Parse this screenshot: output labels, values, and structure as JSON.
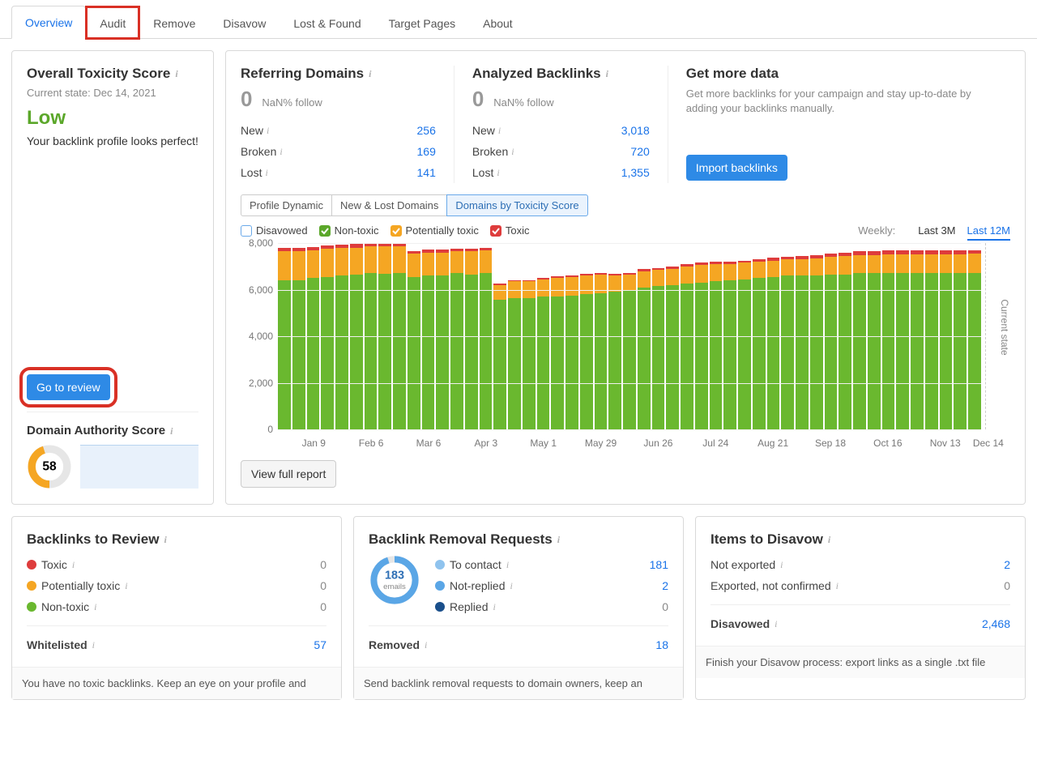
{
  "tabs": {
    "items": [
      "Overview",
      "Audit",
      "Remove",
      "Disavow",
      "Lost & Found",
      "Target Pages",
      "About"
    ],
    "active_index": 0,
    "highlight_index": 1
  },
  "toxicity": {
    "title": "Overall Toxicity Score",
    "current_state_label": "Current state: Dec 14, 2021",
    "value": "Low",
    "value_color": "#5ba72a",
    "description": "Your backlink profile looks perfect!",
    "review_button": "Go to review"
  },
  "referring": {
    "title": "Referring Domains",
    "count": "0",
    "follow": "NaN% follow",
    "rows": [
      {
        "label": "New",
        "val": "256"
      },
      {
        "label": "Broken",
        "val": "169"
      },
      {
        "label": "Lost",
        "val": "141"
      }
    ]
  },
  "analyzed": {
    "title": "Analyzed Backlinks",
    "count": "0",
    "follow": "NaN% follow",
    "rows": [
      {
        "label": "New",
        "val": "3,018"
      },
      {
        "label": "Broken",
        "val": "720"
      },
      {
        "label": "Lost",
        "val": "1,355"
      }
    ]
  },
  "getmore": {
    "title": "Get more data",
    "desc": "Get more backlinks for your campaign and stay up-to-date by adding your backlinks manually.",
    "button": "Import backlinks"
  },
  "subtabs": {
    "items": [
      "Profile Dynamic",
      "New & Lost Domains",
      "Domains by Toxicity Score"
    ],
    "active_index": 2
  },
  "legend": {
    "items": [
      {
        "label": "Disavowed",
        "checked": false,
        "bg": "#ffffff",
        "border": "#6aa9e9"
      },
      {
        "label": "Non-toxic",
        "checked": true,
        "bg": "#5ba72a",
        "border": "#5ba72a"
      },
      {
        "label": "Potentially toxic",
        "checked": true,
        "bg": "#f5a623",
        "border": "#f5a623"
      },
      {
        "label": "Toxic",
        "checked": true,
        "bg": "#de3c3c",
        "border": "#de3c3c"
      }
    ]
  },
  "period": {
    "label": "Weekly:",
    "options": [
      "Last 3M",
      "Last 12M"
    ],
    "active": "Last 12M"
  },
  "chart": {
    "ymax": 8000,
    "yticks": [
      0,
      2000,
      4000,
      6000,
      8000
    ],
    "ytick_labels": [
      "0",
      "2,000",
      "4,000",
      "6,000",
      "8,000"
    ],
    "colors": {
      "nontoxic": "#6ab82f",
      "potential": "#f5a623",
      "toxic": "#de3c3c"
    },
    "series": [
      {
        "n": 6400,
        "p": 1250,
        "t": 150
      },
      {
        "n": 6400,
        "p": 1250,
        "t": 150
      },
      {
        "n": 6500,
        "p": 1200,
        "t": 140
      },
      {
        "n": 6550,
        "p": 1200,
        "t": 150
      },
      {
        "n": 6600,
        "p": 1200,
        "t": 140
      },
      {
        "n": 6650,
        "p": 1150,
        "t": 150
      },
      {
        "n": 6700,
        "p": 1150,
        "t": 150
      },
      {
        "n": 6750,
        "p": 1200,
        "t": 150
      },
      {
        "n": 6700,
        "p": 1150,
        "t": 120
      },
      {
        "n": 6550,
        "p": 1000,
        "t": 110
      },
      {
        "n": 6600,
        "p": 1000,
        "t": 120
      },
      {
        "n": 6600,
        "p": 1000,
        "t": 110
      },
      {
        "n": 6700,
        "p": 950,
        "t": 120
      },
      {
        "n": 6650,
        "p": 1000,
        "t": 100
      },
      {
        "n": 6700,
        "p": 1000,
        "t": 100
      },
      {
        "n": 5550,
        "p": 650,
        "t": 50
      },
      {
        "n": 5650,
        "p": 700,
        "t": 50
      },
      {
        "n": 5650,
        "p": 700,
        "t": 60
      },
      {
        "n": 5700,
        "p": 750,
        "t": 60
      },
      {
        "n": 5700,
        "p": 800,
        "t": 60
      },
      {
        "n": 5750,
        "p": 800,
        "t": 70
      },
      {
        "n": 5800,
        "p": 800,
        "t": 70
      },
      {
        "n": 5850,
        "p": 800,
        "t": 70
      },
      {
        "n": 5900,
        "p": 700,
        "t": 70
      },
      {
        "n": 5950,
        "p": 700,
        "t": 70
      },
      {
        "n": 6100,
        "p": 700,
        "t": 80
      },
      {
        "n": 6150,
        "p": 700,
        "t": 80
      },
      {
        "n": 6200,
        "p": 700,
        "t": 90
      },
      {
        "n": 6250,
        "p": 750,
        "t": 90
      },
      {
        "n": 6300,
        "p": 750,
        "t": 100
      },
      {
        "n": 6350,
        "p": 750,
        "t": 100
      },
      {
        "n": 6400,
        "p": 700,
        "t": 100
      },
      {
        "n": 6450,
        "p": 700,
        "t": 100
      },
      {
        "n": 6500,
        "p": 700,
        "t": 110
      },
      {
        "n": 6550,
        "p": 700,
        "t": 110
      },
      {
        "n": 6600,
        "p": 700,
        "t": 120
      },
      {
        "n": 6600,
        "p": 700,
        "t": 130
      },
      {
        "n": 6600,
        "p": 750,
        "t": 140
      },
      {
        "n": 6650,
        "p": 750,
        "t": 150
      },
      {
        "n": 6650,
        "p": 780,
        "t": 160
      },
      {
        "n": 6700,
        "p": 780,
        "t": 170
      },
      {
        "n": 6700,
        "p": 790,
        "t": 170
      },
      {
        "n": 6700,
        "p": 800,
        "t": 180
      },
      {
        "n": 6700,
        "p": 800,
        "t": 180
      },
      {
        "n": 6700,
        "p": 820,
        "t": 180
      },
      {
        "n": 6700,
        "p": 820,
        "t": 180
      },
      {
        "n": 6700,
        "p": 820,
        "t": 180
      },
      {
        "n": 6700,
        "p": 830,
        "t": 170
      },
      {
        "n": 6700,
        "p": 840,
        "t": 150
      }
    ],
    "xticks": [
      {
        "pos_idx": 2,
        "label": "Jan 9"
      },
      {
        "pos_idx": 6,
        "label": "Feb 6"
      },
      {
        "pos_idx": 10,
        "label": "Mar 6"
      },
      {
        "pos_idx": 14,
        "label": "Apr 3"
      },
      {
        "pos_idx": 18,
        "label": "May 1"
      },
      {
        "pos_idx": 22,
        "label": "May 29"
      },
      {
        "pos_idx": 26,
        "label": "Jun 26"
      },
      {
        "pos_idx": 30,
        "label": "Jul 24"
      },
      {
        "pos_idx": 34,
        "label": "Aug 21"
      },
      {
        "pos_idx": 38,
        "label": "Sep 18"
      },
      {
        "pos_idx": 42,
        "label": "Oct 16"
      },
      {
        "pos_idx": 46,
        "label": "Nov 13"
      },
      {
        "pos_idx": 49,
        "label": "Dec 14"
      }
    ],
    "current_state_label": "Current state",
    "view_full": "View full report"
  },
  "das": {
    "title": "Domain Authority Score",
    "value": "58",
    "donut": {
      "pct": 45,
      "color": "#f5a623",
      "track": "#e6e6e6"
    }
  },
  "review_box": {
    "title": "Backlinks to Review",
    "rows": [
      {
        "label": "Toxic",
        "color": "#de3c3c",
        "val": "0"
      },
      {
        "label": "Potentially toxic",
        "color": "#f5a623",
        "val": "0"
      },
      {
        "label": "Non-toxic",
        "color": "#6ab82f",
        "val": "0"
      }
    ],
    "whitelisted_label": "Whitelisted",
    "whitelisted_val": "57",
    "footer": "You have no toxic backlinks. Keep an eye on your profile and"
  },
  "removal_box": {
    "title": "Backlink Removal Requests",
    "donut": {
      "value": "183",
      "sub": "emails",
      "pct": 95,
      "color": "#5aa6e6",
      "track": "#e6e6e6"
    },
    "rows": [
      {
        "label": "To contact",
        "color": "#8fc3ee",
        "val": "181",
        "blue": true
      },
      {
        "label": "Not-replied",
        "color": "#5aa6e6",
        "val": "2",
        "blue": true
      },
      {
        "label": "Replied",
        "color": "#1a4f8b",
        "val": "0",
        "blue": false
      }
    ],
    "removed_label": "Removed",
    "removed_val": "18",
    "footer": "Send backlink removal requests to domain owners, keep an"
  },
  "disavow_box": {
    "title": "Items to Disavow",
    "rows": [
      {
        "label": "Not exported",
        "val": "2",
        "blue": true
      },
      {
        "label": "Exported, not confirmed",
        "val": "0",
        "blue": false
      }
    ],
    "disavowed_label": "Disavowed",
    "disavowed_val": "2,468",
    "footer": "Finish your Disavow process: export links as a single .txt file"
  }
}
